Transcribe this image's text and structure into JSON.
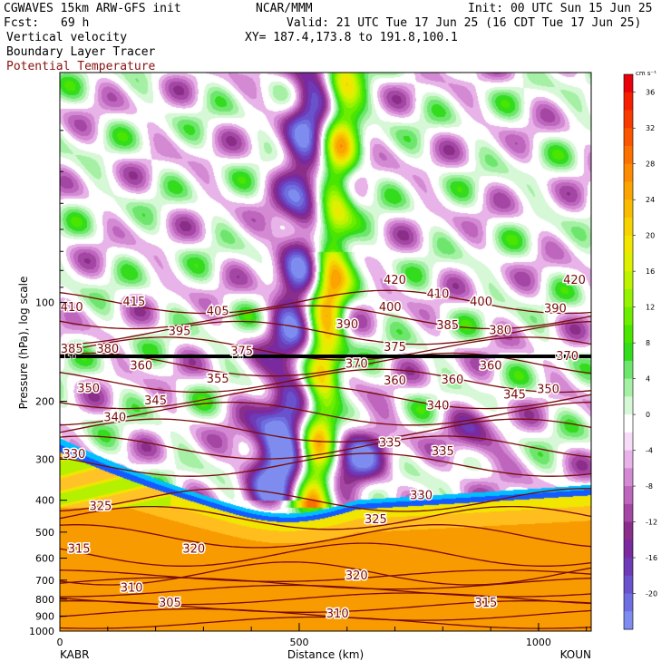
{
  "header": {
    "model": "CGWAVES 15km ARW-GFS init",
    "org": "NCAR/MMM",
    "init": "Init: 00 UTC Sun 15 Jun 25",
    "fcst_label": "Fcst:",
    "fcst_value": "69 h",
    "valid": "Valid: 21 UTC Tue 17 Jun 25 (16 CDT Tue 17 Jun 25)",
    "field1": "Vertical velocity",
    "xy": "XY= 187.4,173.8 to 191.8,100.1",
    "field2": "Boundary Layer Tracer",
    "field3": "Potential Temperature"
  },
  "chart_data": {
    "type": "heatmap",
    "title": "Vertical velocity",
    "xlabel": "Distance (km)",
    "ylabel": "Pressure (hPa), log scale",
    "xlim": [
      0,
      1110
    ],
    "ylim": [
      1000,
      20
    ],
    "y_scale": "log",
    "x_ticks": [
      0,
      500,
      1000
    ],
    "x_tick_labels": [
      "0",
      "500",
      "1000"
    ],
    "y_ticks": [
      100,
      200,
      300,
      400,
      500,
      600,
      700,
      800,
      900,
      1000
    ],
    "y_tick_labels": [
      "100",
      "200",
      "300",
      "400",
      "500",
      "600",
      "700",
      "800",
      "900",
      "1000"
    ],
    "endpoints": {
      "left": "KABR",
      "right": "KOUN"
    },
    "colorbar": {
      "units": "cm s⁻¹",
      "ticks": [
        36,
        32,
        28,
        24,
        20,
        16,
        12,
        8,
        4,
        0,
        -4,
        -8,
        -12,
        -16,
        -20
      ],
      "tick_labels": [
        "36",
        "32",
        "28",
        "24",
        "20",
        "16",
        "12",
        "8",
        "4",
        "0",
        "-4",
        "-8",
        "-12",
        "-16",
        "-20"
      ],
      "colors": [
        "#e8000b",
        "#f51f00",
        "#f83a00",
        "#fb5500",
        "#fc7000",
        "#fd8a00",
        "#fba300",
        "#f9bb00",
        "#f6d200",
        "#f0e600",
        "#ddf000",
        "#bdf300",
        "#95f200",
        "#6ded00",
        "#4ae600",
        "#33dc1c",
        "#6ee66e",
        "#a5f0a5",
        "#d6f8d6",
        "#ffffff",
        "#f7dcf7",
        "#e8b3e8",
        "#d38ad3",
        "#be66be",
        "#a447a4",
        "#8a2e8a",
        "#7a2a9e",
        "#6e3ab6",
        "#6a52cc",
        "#6f6ee0",
        "#7f8cef"
      ],
      "trace_color": "#1a7bff"
    },
    "isentrope_color": "#7a0a0a",
    "isentrope_labels": [
      {
        "v": "420",
        "x": 700,
        "p": 85
      },
      {
        "v": "420",
        "x": 1075,
        "p": 85
      },
      {
        "v": "410",
        "x": 25,
        "p": 103
      },
      {
        "v": "415",
        "x": 155,
        "p": 99
      },
      {
        "v": "405",
        "x": 330,
        "p": 106
      },
      {
        "v": "410",
        "x": 790,
        "p": 94
      },
      {
        "v": "400",
        "x": 690,
        "p": 103
      },
      {
        "v": "400",
        "x": 880,
        "p": 99
      },
      {
        "v": "390",
        "x": 1035,
        "p": 104
      },
      {
        "v": "395",
        "x": 250,
        "p": 122
      },
      {
        "v": "390",
        "x": 600,
        "p": 116
      },
      {
        "v": "385",
        "x": 810,
        "p": 117
      },
      {
        "v": "380",
        "x": 920,
        "p": 121
      },
      {
        "v": "385",
        "x": 25,
        "p": 138
      },
      {
        "v": "380",
        "x": 100,
        "p": 138
      },
      {
        "v": "375",
        "x": 380,
        "p": 140
      },
      {
        "v": "375",
        "x": 700,
        "p": 136
      },
      {
        "v": "370",
        "x": 1060,
        "p": 145
      },
      {
        "v": "360",
        "x": 170,
        "p": 155
      },
      {
        "v": "370",
        "x": 620,
        "p": 153
      },
      {
        "v": "360",
        "x": 900,
        "p": 155
      },
      {
        "v": "355",
        "x": 330,
        "p": 170
      },
      {
        "v": "360",
        "x": 700,
        "p": 172
      },
      {
        "v": "360",
        "x": 820,
        "p": 171
      },
      {
        "v": "350",
        "x": 60,
        "p": 182
      },
      {
        "v": "345",
        "x": 950,
        "p": 190
      },
      {
        "v": "350",
        "x": 1020,
        "p": 183
      },
      {
        "v": "345",
        "x": 200,
        "p": 198
      },
      {
        "v": "340",
        "x": 790,
        "p": 205
      },
      {
        "v": "340",
        "x": 115,
        "p": 223
      },
      {
        "v": "335",
        "x": 690,
        "p": 266
      },
      {
        "v": "335",
        "x": 800,
        "p": 283
      },
      {
        "v": "330",
        "x": 30,
        "p": 288
      },
      {
        "v": "330",
        "x": 755,
        "p": 385
      },
      {
        "v": "325",
        "x": 85,
        "p": 415
      },
      {
        "v": "325",
        "x": 660,
        "p": 455
      },
      {
        "v": "315",
        "x": 40,
        "p": 560
      },
      {
        "v": "320",
        "x": 280,
        "p": 560
      },
      {
        "v": "320",
        "x": 620,
        "p": 675
      },
      {
        "v": "310",
        "x": 150,
        "p": 735
      },
      {
        "v": "305",
        "x": 230,
        "p": 815
      },
      {
        "v": "315",
        "x": 890,
        "p": 815
      },
      {
        "v": "310",
        "x": 580,
        "p": 880
      }
    ],
    "tracer_labels": [
      {
        "v": "150",
        "x": 20,
        "p": 146
      },
      {
        "v": "150",
        "x": 370,
        "p": 146
      },
      {
        "v": "150",
        "x": 1045,
        "p": 146
      }
    ]
  }
}
